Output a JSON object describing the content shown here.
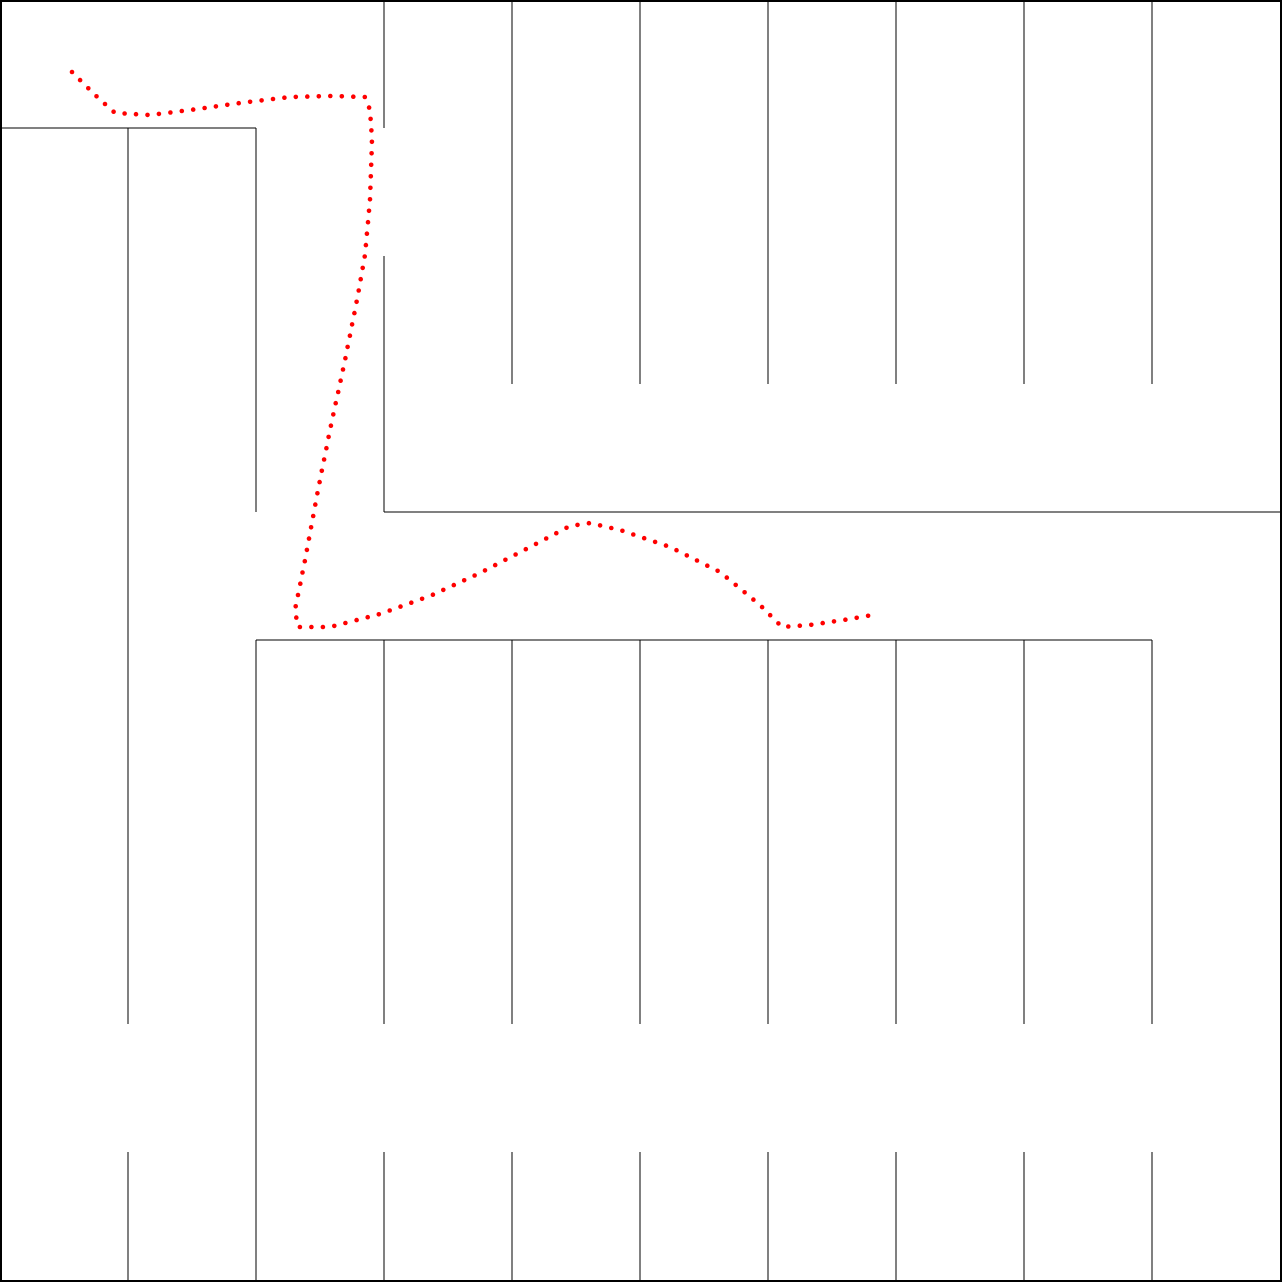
{
  "maze": {
    "wall_color": "#000000",
    "background_color": "#ffffff",
    "path_color": "#ff0000"
  }
}
